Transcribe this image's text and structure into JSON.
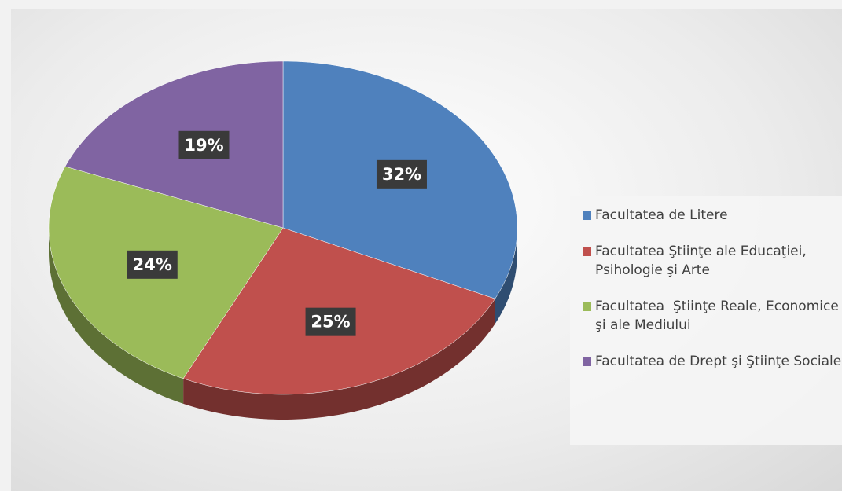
{
  "chart_data": {
    "type": "pie",
    "categories": [
      "Facultatea de Litere",
      "Facultatea Ştiinţe ale Educaţiei, Psihologie şi Arte",
      "Facultatea  Ştiinţe Reale, Economice şi ale Mediului",
      "Facultatea de Drept şi Ştiinţe Sociale"
    ],
    "values": [
      32,
      25,
      24,
      19
    ],
    "value_labels": [
      "32%",
      "25%",
      "24%",
      "19%"
    ],
    "colors": [
      "#4f81bd",
      "#c0504d",
      "#9bbb59",
      "#8064a2"
    ],
    "legend": "right"
  }
}
